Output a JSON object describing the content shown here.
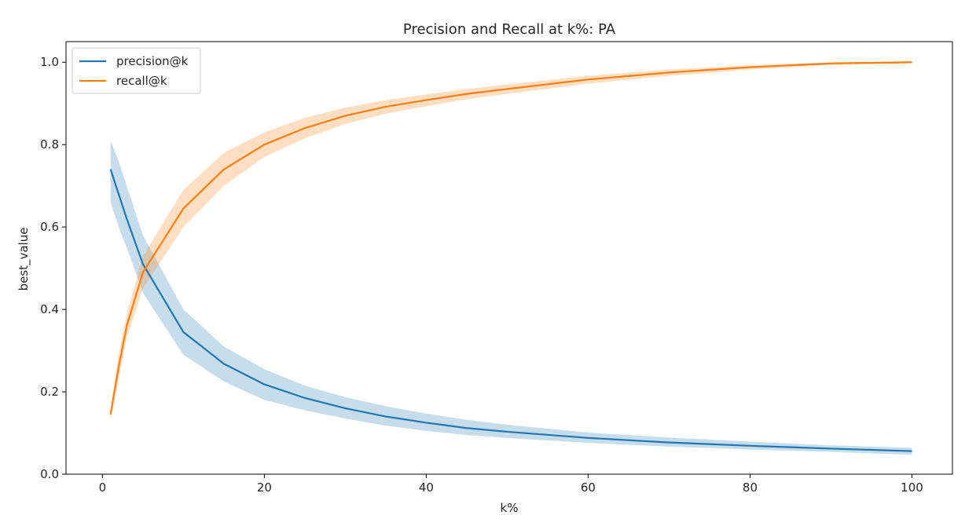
{
  "chart_data": {
    "type": "line",
    "title": "Precision and Recall at k%: PA",
    "xlabel": "k%",
    "ylabel": "best_value",
    "xlim": [
      -4.5,
      105
    ],
    "ylim": [
      0.0,
      1.05
    ],
    "xticks": [
      0,
      20,
      40,
      60,
      80,
      100
    ],
    "xtick_labels": [
      "0",
      "20",
      "40",
      "60",
      "80",
      "100"
    ],
    "yticks": [
      0.0,
      0.2,
      0.4,
      0.6,
      0.8,
      1.0
    ],
    "ytick_labels": [
      "0.0",
      "0.2",
      "0.4",
      "0.6",
      "0.8",
      "1.0"
    ],
    "grid": false,
    "legend": {
      "position": "top-left"
    },
    "x": [
      1,
      2,
      3,
      5,
      10,
      15,
      20,
      25,
      30,
      35,
      40,
      45,
      50,
      60,
      70,
      80,
      90,
      100
    ],
    "series": [
      {
        "name": "precision@k",
        "color": "#1f77b4",
        "values": [
          0.74,
          0.68,
          0.62,
          0.51,
          0.345,
          0.268,
          0.218,
          0.185,
          0.16,
          0.14,
          0.125,
          0.112,
          0.103,
          0.088,
          0.077,
          0.069,
          0.062,
          0.056
        ],
        "lower": [
          0.66,
          0.6,
          0.55,
          0.44,
          0.29,
          0.225,
          0.18,
          0.155,
          0.135,
          0.118,
          0.105,
          0.095,
          0.088,
          0.076,
          0.067,
          0.06,
          0.054,
          0.047
        ],
        "upper": [
          0.81,
          0.76,
          0.7,
          0.58,
          0.4,
          0.31,
          0.255,
          0.215,
          0.187,
          0.165,
          0.147,
          0.132,
          0.12,
          0.101,
          0.089,
          0.079,
          0.07,
          0.064
        ]
      },
      {
        "name": "recall@k",
        "color": "#ff7f0e",
        "values": [
          0.145,
          0.26,
          0.36,
          0.49,
          0.645,
          0.74,
          0.8,
          0.84,
          0.87,
          0.892,
          0.908,
          0.923,
          0.935,
          0.958,
          0.975,
          0.988,
          0.997,
          1.0
        ],
        "lower": [
          0.13,
          0.23,
          0.33,
          0.45,
          0.6,
          0.7,
          0.77,
          0.815,
          0.85,
          0.875,
          0.893,
          0.91,
          0.923,
          0.948,
          0.967,
          0.982,
          0.993,
          0.998
        ],
        "upper": [
          0.16,
          0.29,
          0.39,
          0.53,
          0.69,
          0.78,
          0.83,
          0.865,
          0.89,
          0.908,
          0.922,
          0.935,
          0.946,
          0.967,
          0.982,
          0.993,
          1.0,
          1.002
        ]
      }
    ]
  }
}
